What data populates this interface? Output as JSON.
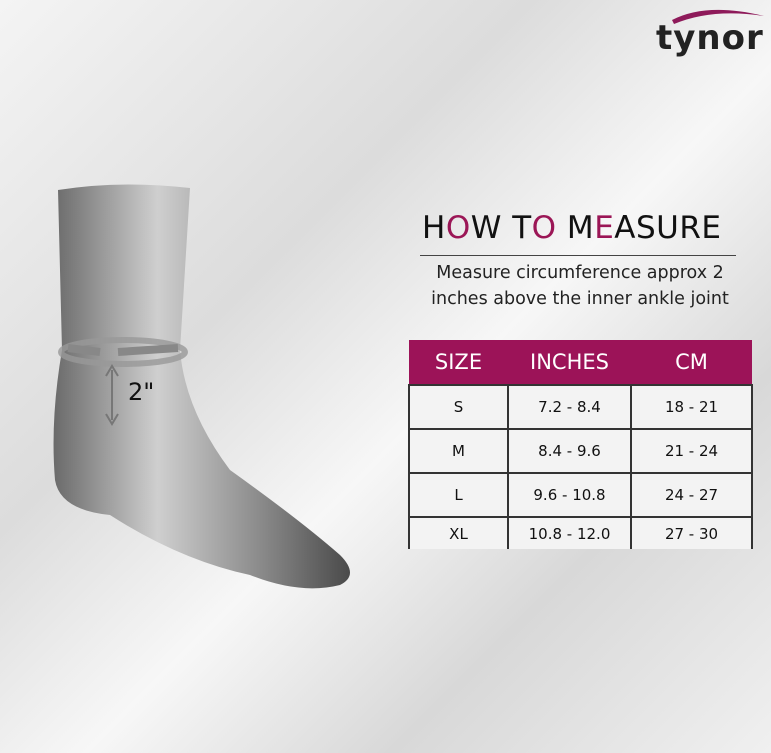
{
  "brand": {
    "name": "tynor",
    "swoosh_color": "#8e1a5a"
  },
  "heading": {
    "segments": [
      {
        "text": "H",
        "hl": false
      },
      {
        "text": "O",
        "hl": true
      },
      {
        "text": "W T",
        "hl": false
      },
      {
        "text": "O",
        "hl": true
      },
      {
        "text": " M",
        "hl": false
      },
      {
        "text": "E",
        "hl": true
      },
      {
        "text": "ASURE",
        "hl": false
      }
    ],
    "accent": "#9b1656"
  },
  "description": [
    "Measure circumference approx 2",
    "inches above the inner ankle joint"
  ],
  "illustration": {
    "label": "2\""
  },
  "table": {
    "headers": [
      "SIZE",
      "INCHES",
      "CM"
    ],
    "header_color": "#9c1358",
    "rows": [
      [
        "S",
        "7.2 - 8.4",
        "18 - 21"
      ],
      [
        "M",
        "8.4 - 9.6",
        "21 - 24"
      ],
      [
        "L",
        "9.6 - 10.8",
        "24 - 27"
      ],
      [
        "XL",
        "10.8 - 12.0",
        "27 - 30"
      ]
    ]
  }
}
